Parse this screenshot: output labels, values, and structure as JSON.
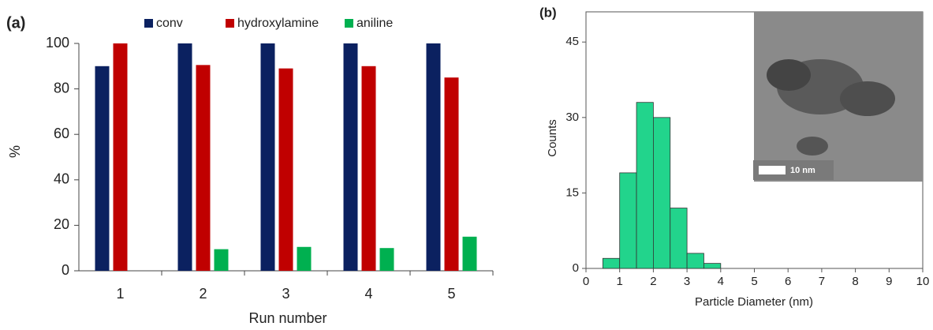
{
  "chart_data": [
    {
      "type": "bar",
      "panel_label": "(a)",
      "x_label": "Run number",
      "y_label": "%",
      "categories": [
        "1",
        "2",
        "3",
        "4",
        "5"
      ],
      "series": [
        {
          "name": "conv",
          "color": "#0b2160",
          "values": [
            90,
            100,
            100,
            100,
            100
          ]
        },
        {
          "name": "hydroxylamine",
          "color": "#c00000",
          "values": [
            100,
            90.5,
            89,
            90,
            85
          ]
        },
        {
          "name": "aniline",
          "color": "#00b050",
          "values": [
            0,
            9.5,
            10.5,
            10,
            15
          ]
        }
      ],
      "ylim": [
        0,
        100
      ],
      "yticks": [
        0,
        20,
        40,
        60,
        80,
        100
      ],
      "legend": "top"
    },
    {
      "type": "histogram",
      "panel_label": "(b)",
      "x_label": "Particle Diameter (nm)",
      "y_label": "Counts",
      "bins": [
        0.5,
        1,
        1.5,
        2,
        2.5,
        3,
        3.5,
        4
      ],
      "values": [
        2,
        19,
        33,
        30,
        12,
        3,
        1
      ],
      "color": "#22d48c",
      "xlim": [
        0,
        10
      ],
      "xticks": [
        0,
        1,
        2,
        3,
        4,
        5,
        6,
        7,
        8,
        9,
        10
      ],
      "ylim": [
        0,
        51
      ],
      "yticks": [
        0,
        15,
        30,
        45
      ],
      "inset_scale_label": "10 nm"
    }
  ]
}
